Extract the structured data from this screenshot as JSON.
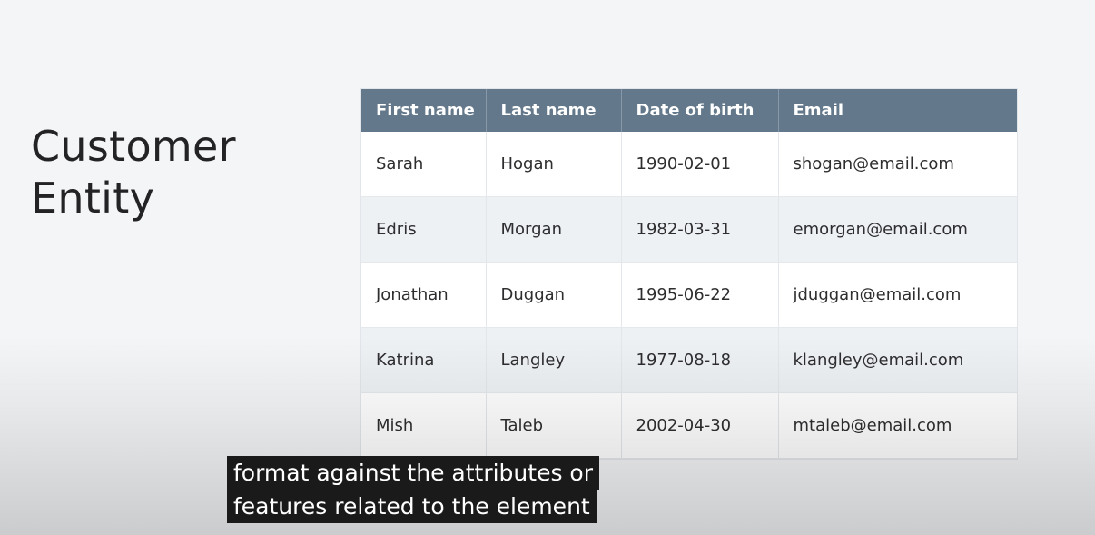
{
  "slide": {
    "title_line1": "Customer",
    "title_line2": "Entity"
  },
  "table": {
    "headers": [
      "First name",
      "Last name",
      "Date of birth",
      "Email"
    ],
    "rows": [
      [
        "Sarah",
        "Hogan",
        "1990-02-01",
        "shogan@email.com"
      ],
      [
        "Edris",
        "Morgan",
        "1982-03-31",
        "emorgan@email.com"
      ],
      [
        "Jonathan",
        "Duggan",
        "1995-06-22",
        "jduggan@email.com"
      ],
      [
        "Katrina",
        "Langley",
        "1977-08-18",
        "klangley@email.com"
      ],
      [
        "Mish",
        "Taleb",
        "2002-04-30",
        "mtaleb@email.com"
      ]
    ]
  },
  "caption": {
    "line1": "format against the attributes or",
    "line2": "features related to the element"
  },
  "colors": {
    "header_bg": "#63788a",
    "header_text": "#ffffff",
    "stripe": "#eef1f4",
    "title_text": "#232326",
    "caption_bg": "#1a1a1a"
  }
}
